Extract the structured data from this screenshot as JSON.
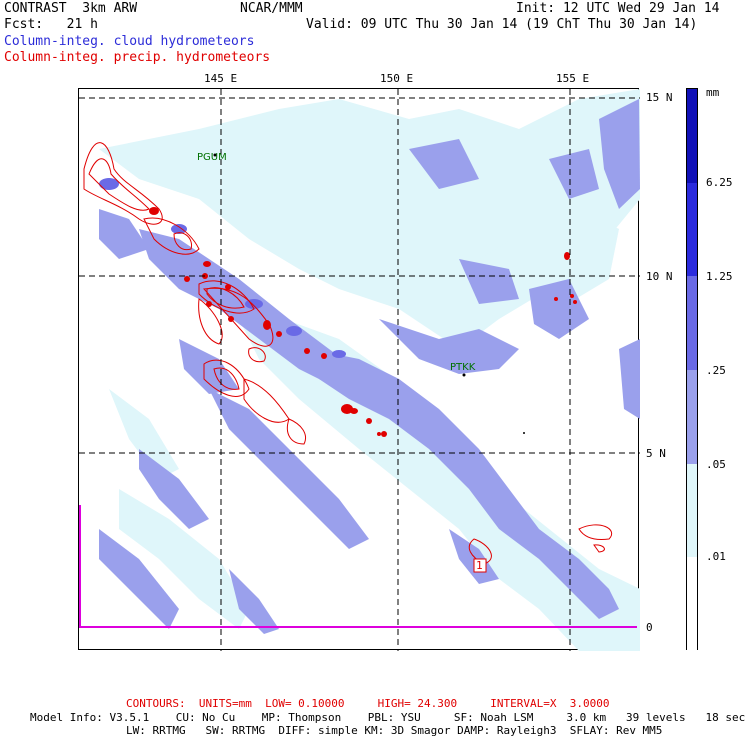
{
  "header": {
    "model": "CONTRAST  3km ARW",
    "agency": "NCAR/MMM",
    "init": "Init: 12 UTC Wed 29 Jan 14",
    "fcst": "Fcst:   21 h",
    "valid": "Valid: 09 UTC Thu 30 Jan 14 (19 ChT Thu 30 Jan 14)",
    "field1": "Column-integ. cloud hydrometeors",
    "field2": "Column-integ. precip. hydrometeors"
  },
  "colors": {
    "field1": "#2c2cd8",
    "field2": "#e00000",
    "level1": "#dff6fa",
    "level2": "#aaccf6",
    "level3": "#9aa0ec",
    "level4": "#6a6ae6",
    "level5": "#2b2bdd",
    "level6": "#1111b8",
    "magenta": "#dd00dd"
  },
  "map": {
    "lon_labels": [
      "145 E",
      "150 E",
      "155 E"
    ],
    "lat_labels": [
      "15 N",
      "10 N",
      "5 N",
      "0"
    ],
    "stations": [
      "PGUM",
      "PTKK"
    ],
    "marker": "1"
  },
  "colorbar": {
    "unit": "mm",
    "labels": [
      "6.25",
      "1.25",
      ".25",
      ".05",
      ".01"
    ]
  },
  "footer": {
    "contours": "CONTOURS:  UNITS=mm  LOW= 0.10000     HIGH= 24.300     INTERVAL=X  3.0000",
    "info1": "Model Info: V3.5.1    CU: No Cu    MP: Thompson    PBL: YSU     SF: Noah LSM     3.0 km   39 levels   18 sec",
    "info2": "LW: RRTMG   SW: RRTMG  DIFF: simple KM: 3D Smagor DAMP: Rayleigh3  SFLAY: Rev MM5"
  }
}
